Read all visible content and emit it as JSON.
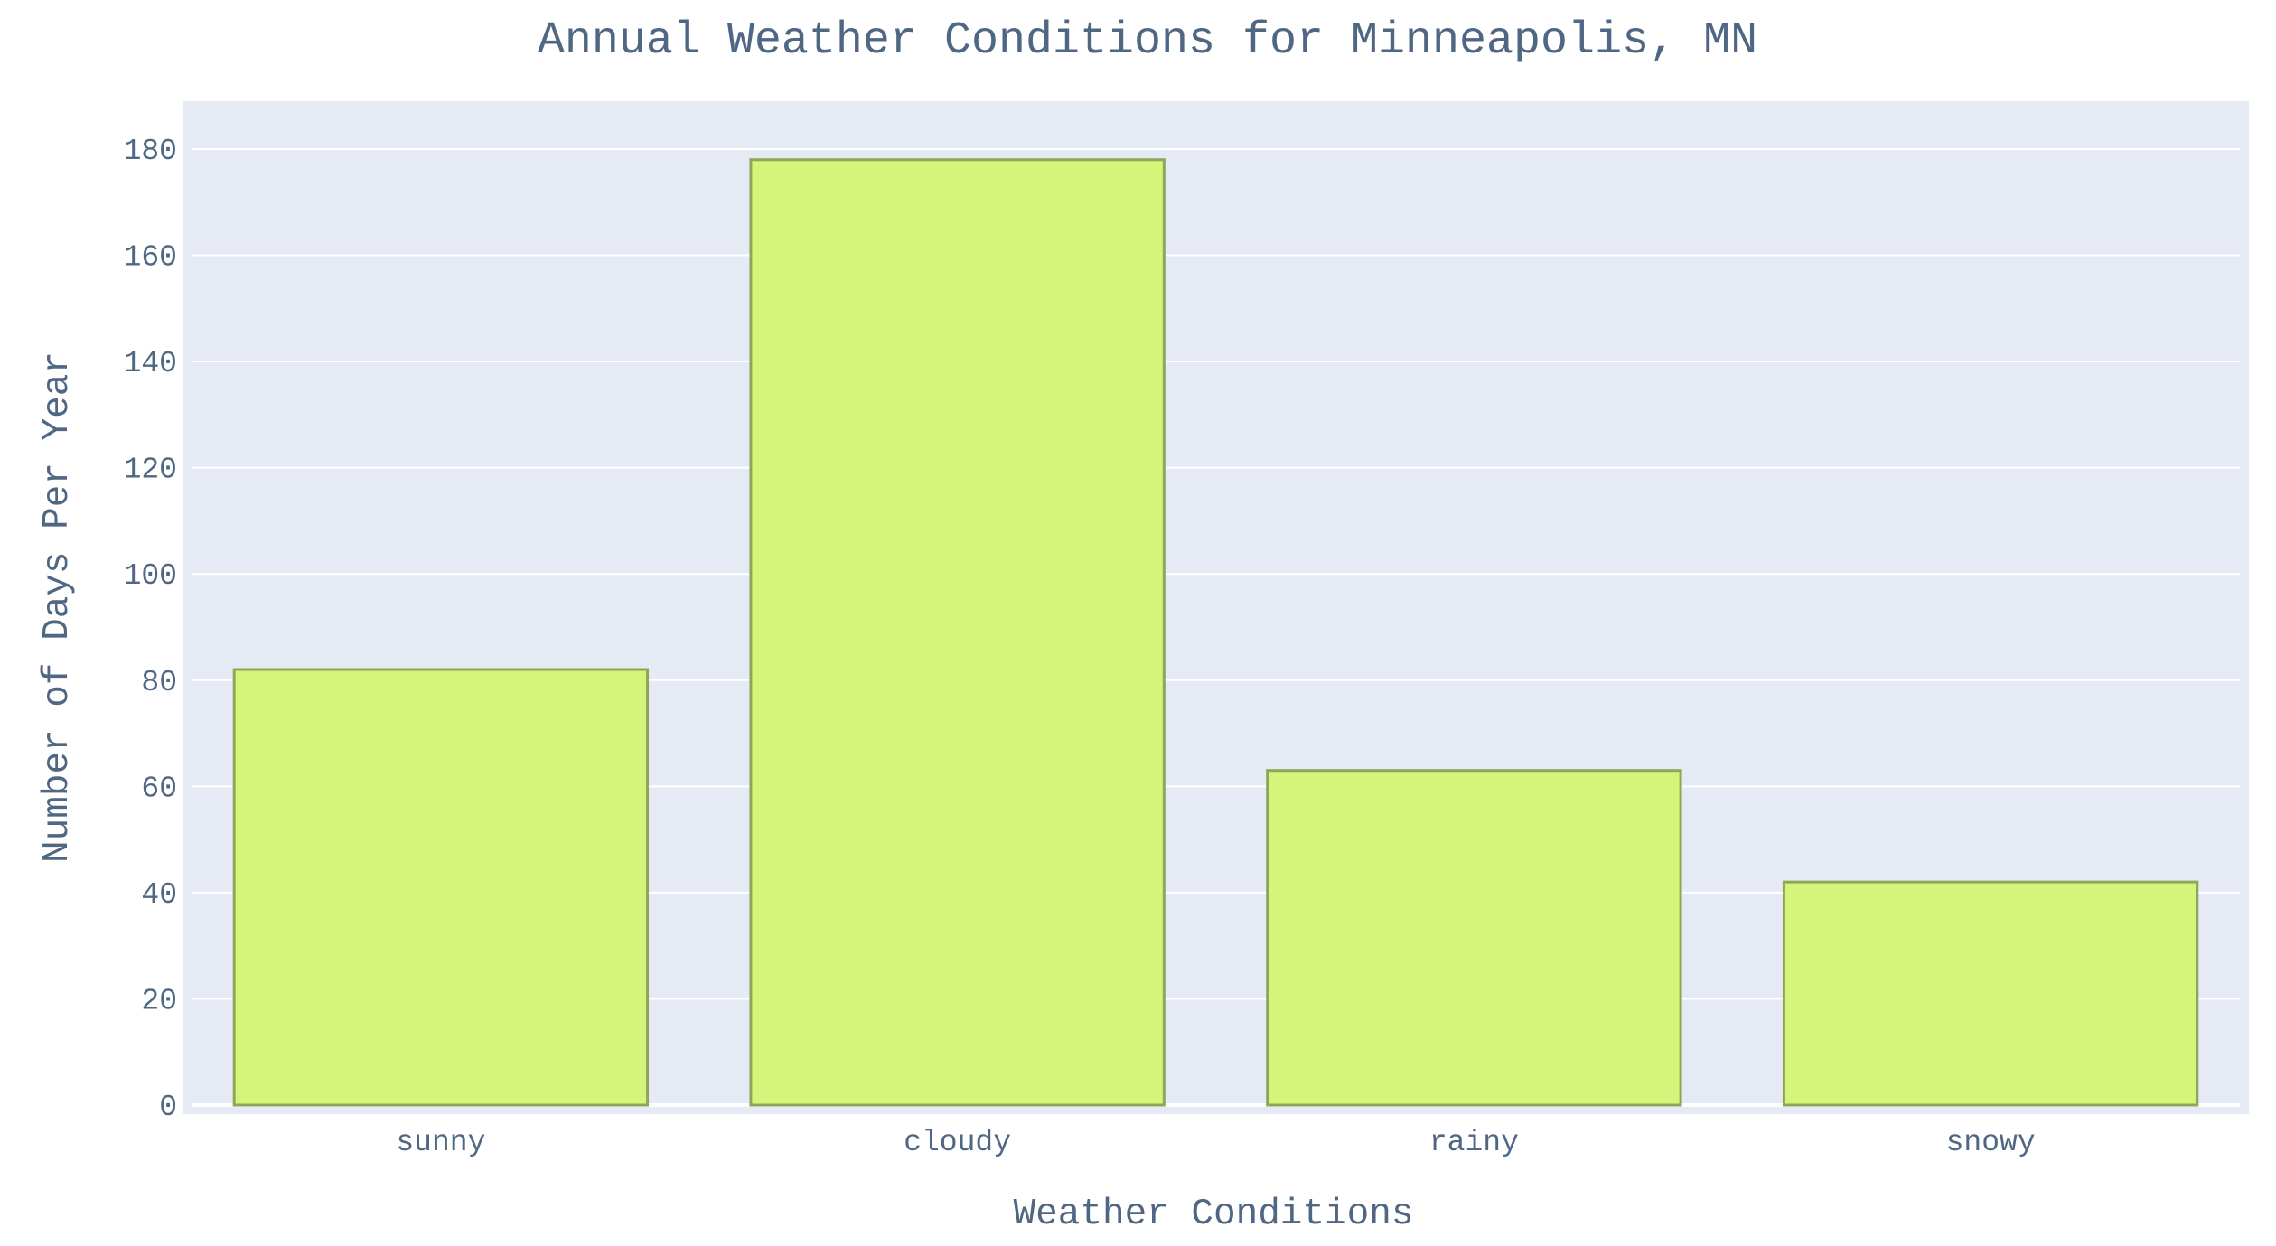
{
  "chart_data": {
    "type": "bar",
    "title": "Annual Weather Conditions for Minneapolis, MN",
    "xlabel": "Weather Conditions",
    "ylabel": "Number of Days Per Year",
    "categories": [
      "sunny",
      "cloudy",
      "rainy",
      "snowy"
    ],
    "values": [
      82,
      178,
      63,
      42
    ],
    "ylim": [
      0,
      189
    ],
    "yticks": [
      0,
      20,
      40,
      60,
      80,
      100,
      120,
      140,
      160,
      180
    ],
    "grid": true,
    "legend": "none",
    "colors": {
      "bar_fill": "#d4f57a",
      "bar_stroke": "#8fa65a",
      "plot_background": "#e6eaf4",
      "gridline": "#ffffff",
      "text": "#506784"
    }
  }
}
